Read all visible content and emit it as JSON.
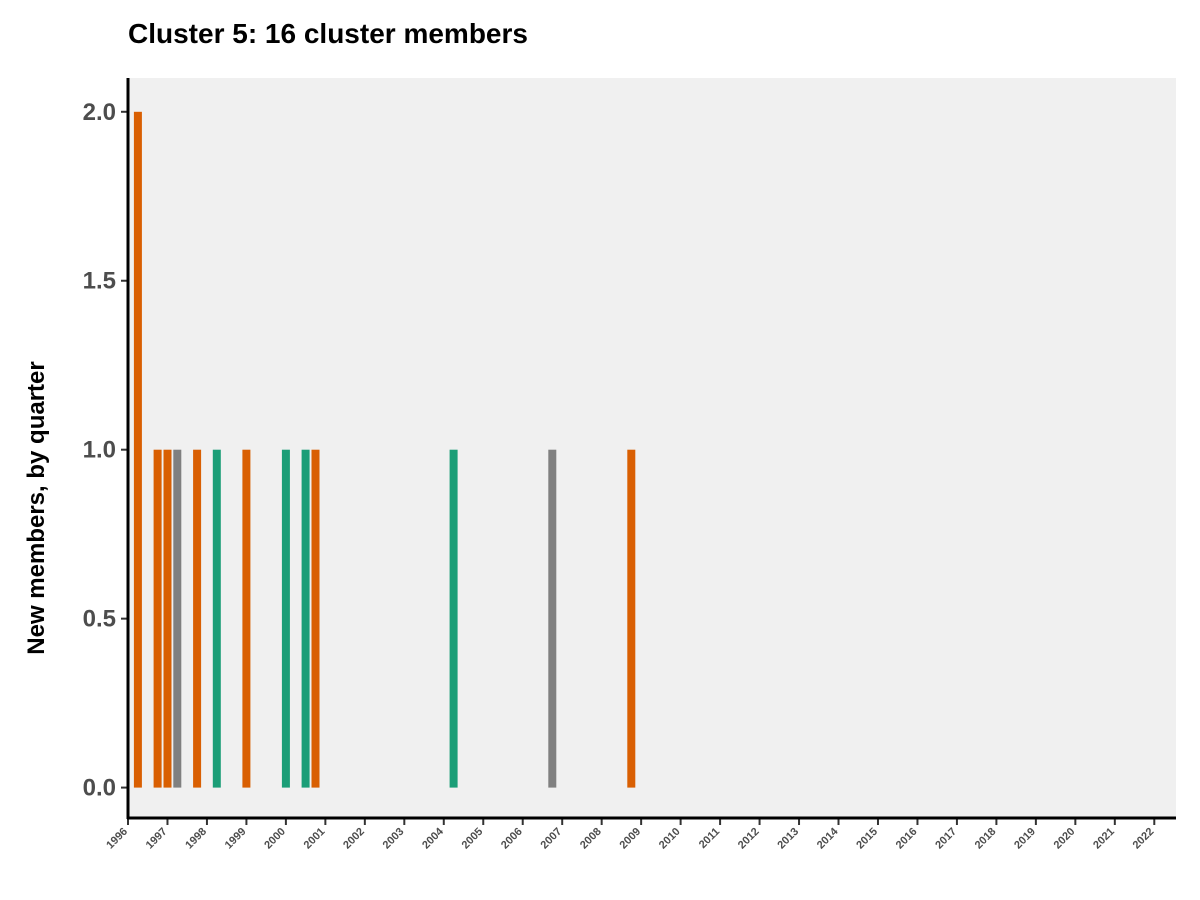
{
  "chart_data": {
    "type": "bar",
    "title": "Cluster 5: 16 cluster members",
    "xlabel": "",
    "ylabel": "New members, by quarter",
    "ylim": [
      -0.09,
      2.1
    ],
    "yticks": [
      "0.0",
      "0.5",
      "1.0",
      "1.5",
      "2.0"
    ],
    "ytick_values": [
      0,
      0.5,
      1,
      1.5,
      2
    ],
    "xlim": [
      1996.0,
      2022.55
    ],
    "xticks": [
      "1996",
      "1997",
      "1998",
      "1999",
      "2000",
      "2001",
      "2002",
      "2003",
      "2004",
      "2005",
      "2006",
      "2007",
      "2008",
      "2009",
      "2010",
      "2011",
      "2012",
      "2013",
      "2014",
      "2015",
      "2016",
      "2017",
      "2018",
      "2019",
      "2020",
      "2021",
      "2022"
    ],
    "grid": false,
    "legend": "none",
    "panel_background": "#f0f0f0",
    "bars": [
      {
        "x": 1996.25,
        "value": 2,
        "color": "#d95f02"
      },
      {
        "x": 1996.75,
        "value": 1,
        "color": "#d95f02"
      },
      {
        "x": 1997.0,
        "value": 1,
        "color": "#d95f02"
      },
      {
        "x": 1997.25,
        "value": 1,
        "color": "#808080"
      },
      {
        "x": 1997.75,
        "value": 1,
        "color": "#d95f02"
      },
      {
        "x": 1998.25,
        "value": 1,
        "color": "#1b9e77"
      },
      {
        "x": 1999.0,
        "value": 1,
        "color": "#d95f02"
      },
      {
        "x": 2000.0,
        "value": 1,
        "color": "#1b9e77"
      },
      {
        "x": 2000.5,
        "value": 1,
        "color": "#1b9e77"
      },
      {
        "x": 2000.75,
        "value": 1,
        "color": "#d95f02"
      },
      {
        "x": 2004.25,
        "value": 1,
        "color": "#1b9e77"
      },
      {
        "x": 2006.75,
        "value": 1,
        "color": "#808080"
      },
      {
        "x": 2008.75,
        "value": 1,
        "color": "#d95f02"
      }
    ]
  }
}
